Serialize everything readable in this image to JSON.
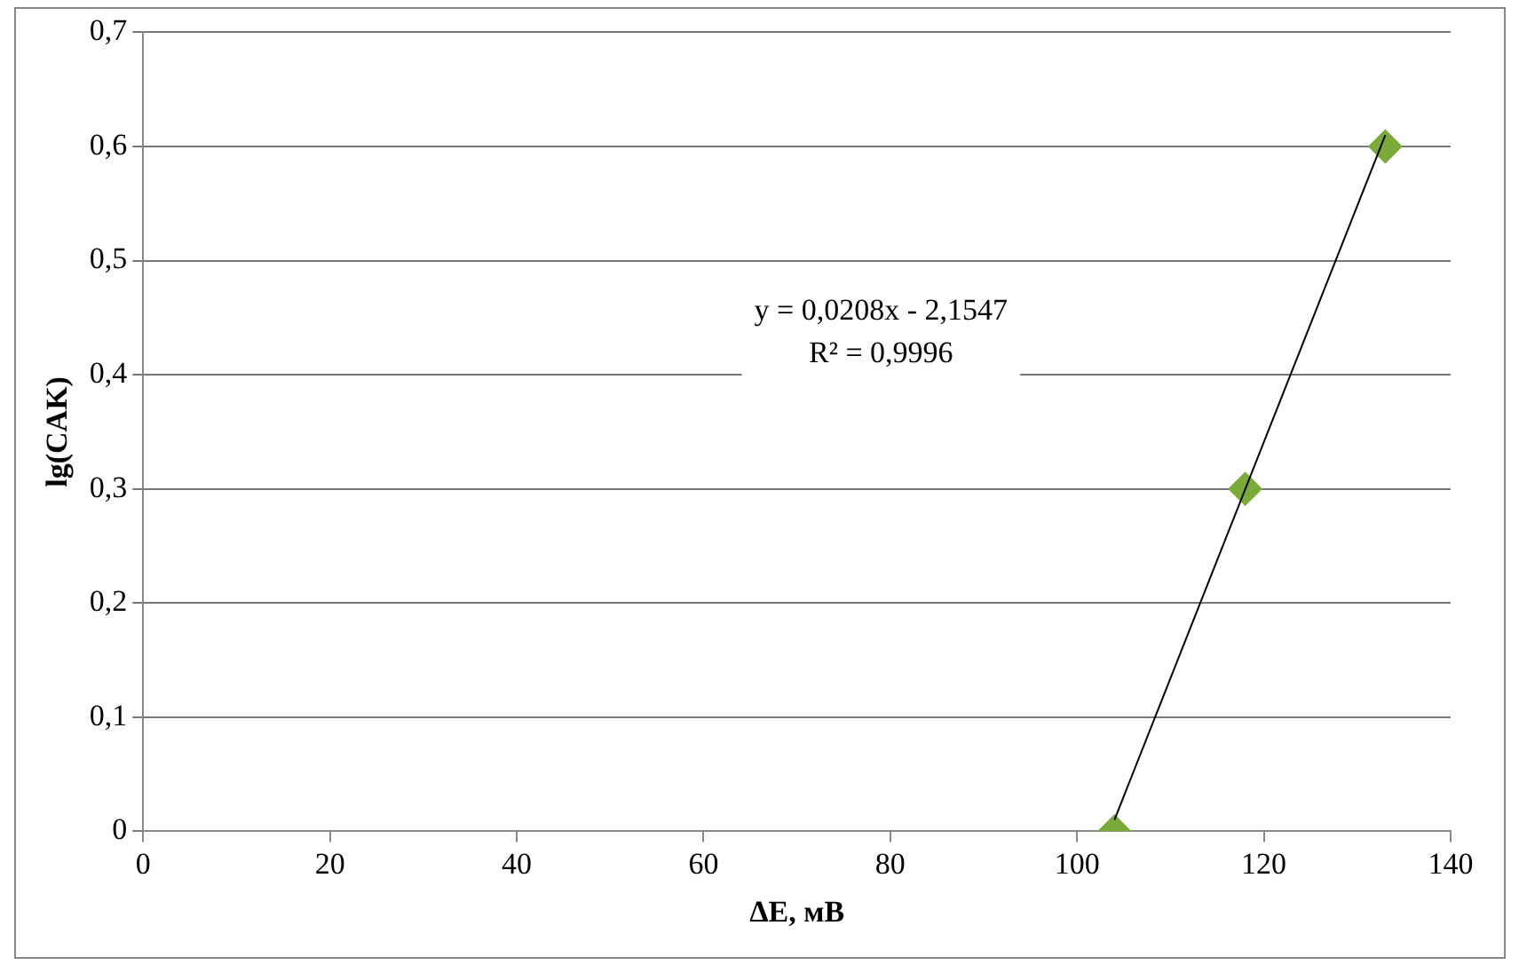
{
  "chart_data": {
    "type": "scatter",
    "xlabel": "ΔE, мВ",
    "ylabel": "lg(CAK)",
    "series": [
      {
        "type": "scatter",
        "color": "#7aab3a",
        "x": [
          104,
          118,
          133
        ],
        "values": [
          0,
          0.3,
          0.6
        ],
        "marker": "diamond"
      },
      {
        "type": "line",
        "color": "#000000",
        "x": [
          104,
          133
        ],
        "values": [
          0.01,
          0.61
        ],
        "marker": "none"
      }
    ],
    "xlim": [
      0,
      140
    ],
    "xticks": [
      0,
      20,
      40,
      60,
      80,
      100,
      120,
      140
    ],
    "ylim": [
      0,
      0.7
    ],
    "yticks": [
      0,
      {
        "value": 0.1,
        "label": "0,1"
      },
      {
        "value": 0.2,
        "label": "0,2"
      },
      {
        "value": 0.3,
        "label": "0,3"
      },
      {
        "value": 0.4,
        "label": "0,4"
      },
      {
        "value": 0.5,
        "label": "0,5"
      },
      {
        "value": 0.6,
        "label": "0,6"
      },
      {
        "value": 0.7,
        "label": "0,7"
      }
    ],
    "grid": "y",
    "legend": false,
    "annotations": [
      "y = 0,0208x - 2,1547",
      "R² = 0,9996"
    ]
  }
}
